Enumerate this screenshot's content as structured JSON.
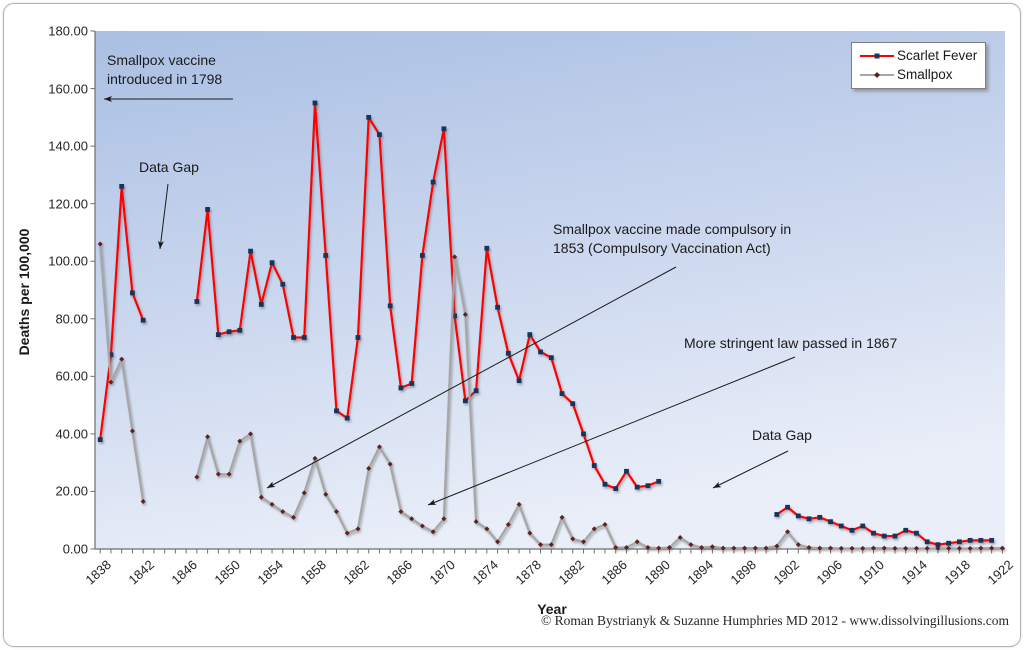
{
  "colors": {
    "scarlet_fever_line": "#ff0000",
    "scarlet_fever_marker": "#16365d",
    "smallpox_line": "#a6a6a6",
    "smallpox_marker": "#5f2120",
    "plot_gradient_top": "#aabfe3",
    "plot_gradient_mid": "#ccd8ef",
    "plot_gradient_bottom": "#e9eef8",
    "axis_line": "#6e6e6e",
    "annotation_arrow": "#1a1a1a"
  },
  "y_axis": {
    "title": "Deaths per 100,000",
    "tick_labels": [
      "180.00",
      "160.00",
      "140.00",
      "120.00",
      "100.00",
      "80.00",
      "60.00",
      "40.00",
      "20.00",
      "0.00"
    ],
    "min": 0,
    "max": 180,
    "step": 20
  },
  "x_axis": {
    "title": "Year",
    "tick_labels": [
      "1838",
      "1842",
      "1846",
      "1850",
      "1854",
      "1858",
      "1862",
      "1866",
      "1870",
      "1874",
      "1878",
      "1882",
      "1886",
      "1890",
      "1894",
      "1898",
      "1902",
      "1906",
      "1910",
      "1914",
      "1918",
      "1922"
    ],
    "minor_tick_start": 1838,
    "minor_tick_end": 1922,
    "minor_tick_every": 1
  },
  "legend": {
    "items": [
      {
        "label": "Scarlet Fever",
        "line_color": "#ff0000",
        "marker_color": "#16365d",
        "marker": "square"
      },
      {
        "label": "Smallpox",
        "line_color": "#a6a6a6",
        "marker_color": "#5f2120",
        "marker": "diamond"
      }
    ]
  },
  "annotations": [
    {
      "id": "vaccine-1798",
      "lines": [
        "Smallpox vaccine",
        "introduced in 1798"
      ]
    },
    {
      "id": "data-gap-left",
      "lines": [
        "Data Gap"
      ]
    },
    {
      "id": "compulsory-1853",
      "lines": [
        "Smallpox vaccine made compulsory in",
        "1853 (Compulsory Vaccination Act)"
      ]
    },
    {
      "id": "stringent-1867",
      "lines": [
        "More stringent law passed in 1867"
      ]
    },
    {
      "id": "data-gap-right",
      "lines": [
        "Data Gap"
      ]
    }
  ],
  "footer": {
    "text": "© Roman Bystrianyk & Suzanne Humphries MD 2012 - www.dissolvingillusions.com"
  },
  "chart_data": {
    "type": "line",
    "title": "",
    "xlabel": "Year",
    "ylabel": "Deaths per 100,000",
    "xlim": [
      1838,
      1922
    ],
    "ylim": [
      0,
      180
    ],
    "grid": false,
    "legend_position": "top-right",
    "notes": "Both series have a registration data gap 1843-1846; Scarlet Fever also has a data gap 1891-1900.",
    "series": [
      {
        "name": "Scarlet Fever",
        "color": "#ff0000",
        "marker": "square",
        "marker_color": "#16365d",
        "segments": [
          {
            "start_year": 1838,
            "values": [
              38,
              67.5,
              126,
              89,
              79.5
            ]
          },
          {
            "start_year": 1847,
            "values": [
              86,
              118,
              74.5,
              75.5,
              76,
              103.5,
              85,
              99.5,
              92,
              73.5,
              73.5,
              155,
              102,
              48,
              45.5,
              73.5,
              150,
              144,
              84.5,
              56,
              57.5,
              102,
              127.5,
              146,
              81,
              51.5,
              55,
              104.5,
              84,
              68,
              58.5,
              74.5,
              68.5,
              66.5,
              54,
              50.5,
              40,
              29,
              22.5,
              21,
              27,
              21.5,
              22,
              23.5
            ]
          },
          {
            "start_year": 1901,
            "values": [
              12,
              14.5,
              11.5,
              10.5,
              11,
              9.5,
              8,
              6.5,
              8,
              5.5,
              4.5,
              4.5,
              6.5,
              5.5,
              2.5,
              1.5,
              2,
              2.5,
              3,
              3,
              3
            ]
          }
        ]
      },
      {
        "name": "Smallpox",
        "color": "#a6a6a6",
        "marker": "diamond",
        "marker_color": "#5f2120",
        "segments": [
          {
            "start_year": 1838,
            "values": [
              106,
              58,
              66,
              41,
              16.5
            ]
          },
          {
            "start_year": 1847,
            "values": [
              25,
              39,
              26,
              26,
              37.5,
              40,
              18,
              15.5,
              13,
              11,
              19.5,
              31.5,
              19,
              13,
              5.5,
              7,
              28,
              35.5,
              29.5,
              13,
              10.5,
              8,
              6,
              10.5,
              101.5,
              81.5,
              9.5,
              7,
              2.5,
              8.5,
              15.5,
              5.5,
              1.5,
              1.5,
              11,
              3.5,
              2.5,
              7,
              8.5,
              0.5,
              0.5,
              2.5,
              0.5,
              0.3,
              0.5,
              4,
              1.5,
              0.5,
              0.8,
              0.3,
              0.3,
              0.3,
              0.3,
              0.3,
              1,
              6,
              1.5,
              0.5,
              0.3,
              0.3,
              0.2,
              0.2,
              0.2,
              0.3,
              0.3,
              0.2,
              0.2,
              0.2,
              0.2,
              0.2,
              0.2,
              0.2,
              0.2,
              0.3,
              0.3,
              0.3
            ]
          }
        ]
      }
    ]
  }
}
